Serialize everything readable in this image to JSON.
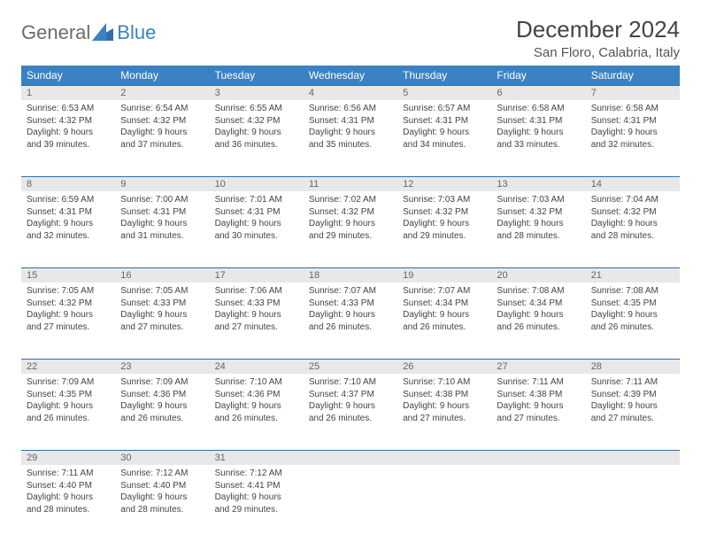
{
  "brand": {
    "name1": "General",
    "name2": "Blue"
  },
  "title": "December 2024",
  "location": "San Floro, Calabria, Italy",
  "colors": {
    "header_bg": "#3b82c4",
    "header_text": "#ffffff",
    "daynum_bg": "#e8e8e8",
    "daynum_text": "#666666",
    "row_border": "#2f6ea8",
    "body_text": "#444444",
    "logo_gray": "#6b6b6b",
    "logo_blue": "#3b82c4"
  },
  "day_headers": [
    "Sunday",
    "Monday",
    "Tuesday",
    "Wednesday",
    "Thursday",
    "Friday",
    "Saturday"
  ],
  "weeks": [
    [
      {
        "n": "1",
        "sr": "Sunrise: 6:53 AM",
        "ss": "Sunset: 4:32 PM",
        "d1": "Daylight: 9 hours",
        "d2": "and 39 minutes."
      },
      {
        "n": "2",
        "sr": "Sunrise: 6:54 AM",
        "ss": "Sunset: 4:32 PM",
        "d1": "Daylight: 9 hours",
        "d2": "and 37 minutes."
      },
      {
        "n": "3",
        "sr": "Sunrise: 6:55 AM",
        "ss": "Sunset: 4:32 PM",
        "d1": "Daylight: 9 hours",
        "d2": "and 36 minutes."
      },
      {
        "n": "4",
        "sr": "Sunrise: 6:56 AM",
        "ss": "Sunset: 4:31 PM",
        "d1": "Daylight: 9 hours",
        "d2": "and 35 minutes."
      },
      {
        "n": "5",
        "sr": "Sunrise: 6:57 AM",
        "ss": "Sunset: 4:31 PM",
        "d1": "Daylight: 9 hours",
        "d2": "and 34 minutes."
      },
      {
        "n": "6",
        "sr": "Sunrise: 6:58 AM",
        "ss": "Sunset: 4:31 PM",
        "d1": "Daylight: 9 hours",
        "d2": "and 33 minutes."
      },
      {
        "n": "7",
        "sr": "Sunrise: 6:58 AM",
        "ss": "Sunset: 4:31 PM",
        "d1": "Daylight: 9 hours",
        "d2": "and 32 minutes."
      }
    ],
    [
      {
        "n": "8",
        "sr": "Sunrise: 6:59 AM",
        "ss": "Sunset: 4:31 PM",
        "d1": "Daylight: 9 hours",
        "d2": "and 32 minutes."
      },
      {
        "n": "9",
        "sr": "Sunrise: 7:00 AM",
        "ss": "Sunset: 4:31 PM",
        "d1": "Daylight: 9 hours",
        "d2": "and 31 minutes."
      },
      {
        "n": "10",
        "sr": "Sunrise: 7:01 AM",
        "ss": "Sunset: 4:31 PM",
        "d1": "Daylight: 9 hours",
        "d2": "and 30 minutes."
      },
      {
        "n": "11",
        "sr": "Sunrise: 7:02 AM",
        "ss": "Sunset: 4:32 PM",
        "d1": "Daylight: 9 hours",
        "d2": "and 29 minutes."
      },
      {
        "n": "12",
        "sr": "Sunrise: 7:03 AM",
        "ss": "Sunset: 4:32 PM",
        "d1": "Daylight: 9 hours",
        "d2": "and 29 minutes."
      },
      {
        "n": "13",
        "sr": "Sunrise: 7:03 AM",
        "ss": "Sunset: 4:32 PM",
        "d1": "Daylight: 9 hours",
        "d2": "and 28 minutes."
      },
      {
        "n": "14",
        "sr": "Sunrise: 7:04 AM",
        "ss": "Sunset: 4:32 PM",
        "d1": "Daylight: 9 hours",
        "d2": "and 28 minutes."
      }
    ],
    [
      {
        "n": "15",
        "sr": "Sunrise: 7:05 AM",
        "ss": "Sunset: 4:32 PM",
        "d1": "Daylight: 9 hours",
        "d2": "and 27 minutes."
      },
      {
        "n": "16",
        "sr": "Sunrise: 7:05 AM",
        "ss": "Sunset: 4:33 PM",
        "d1": "Daylight: 9 hours",
        "d2": "and 27 minutes."
      },
      {
        "n": "17",
        "sr": "Sunrise: 7:06 AM",
        "ss": "Sunset: 4:33 PM",
        "d1": "Daylight: 9 hours",
        "d2": "and 27 minutes."
      },
      {
        "n": "18",
        "sr": "Sunrise: 7:07 AM",
        "ss": "Sunset: 4:33 PM",
        "d1": "Daylight: 9 hours",
        "d2": "and 26 minutes."
      },
      {
        "n": "19",
        "sr": "Sunrise: 7:07 AM",
        "ss": "Sunset: 4:34 PM",
        "d1": "Daylight: 9 hours",
        "d2": "and 26 minutes."
      },
      {
        "n": "20",
        "sr": "Sunrise: 7:08 AM",
        "ss": "Sunset: 4:34 PM",
        "d1": "Daylight: 9 hours",
        "d2": "and 26 minutes."
      },
      {
        "n": "21",
        "sr": "Sunrise: 7:08 AM",
        "ss": "Sunset: 4:35 PM",
        "d1": "Daylight: 9 hours",
        "d2": "and 26 minutes."
      }
    ],
    [
      {
        "n": "22",
        "sr": "Sunrise: 7:09 AM",
        "ss": "Sunset: 4:35 PM",
        "d1": "Daylight: 9 hours",
        "d2": "and 26 minutes."
      },
      {
        "n": "23",
        "sr": "Sunrise: 7:09 AM",
        "ss": "Sunset: 4:36 PM",
        "d1": "Daylight: 9 hours",
        "d2": "and 26 minutes."
      },
      {
        "n": "24",
        "sr": "Sunrise: 7:10 AM",
        "ss": "Sunset: 4:36 PM",
        "d1": "Daylight: 9 hours",
        "d2": "and 26 minutes."
      },
      {
        "n": "25",
        "sr": "Sunrise: 7:10 AM",
        "ss": "Sunset: 4:37 PM",
        "d1": "Daylight: 9 hours",
        "d2": "and 26 minutes."
      },
      {
        "n": "26",
        "sr": "Sunrise: 7:10 AM",
        "ss": "Sunset: 4:38 PM",
        "d1": "Daylight: 9 hours",
        "d2": "and 27 minutes."
      },
      {
        "n": "27",
        "sr": "Sunrise: 7:11 AM",
        "ss": "Sunset: 4:38 PM",
        "d1": "Daylight: 9 hours",
        "d2": "and 27 minutes."
      },
      {
        "n": "28",
        "sr": "Sunrise: 7:11 AM",
        "ss": "Sunset: 4:39 PM",
        "d1": "Daylight: 9 hours",
        "d2": "and 27 minutes."
      }
    ],
    [
      {
        "n": "29",
        "sr": "Sunrise: 7:11 AM",
        "ss": "Sunset: 4:40 PM",
        "d1": "Daylight: 9 hours",
        "d2": "and 28 minutes."
      },
      {
        "n": "30",
        "sr": "Sunrise: 7:12 AM",
        "ss": "Sunset: 4:40 PM",
        "d1": "Daylight: 9 hours",
        "d2": "and 28 minutes."
      },
      {
        "n": "31",
        "sr": "Sunrise: 7:12 AM",
        "ss": "Sunset: 4:41 PM",
        "d1": "Daylight: 9 hours",
        "d2": "and 29 minutes."
      },
      null,
      null,
      null,
      null
    ]
  ]
}
